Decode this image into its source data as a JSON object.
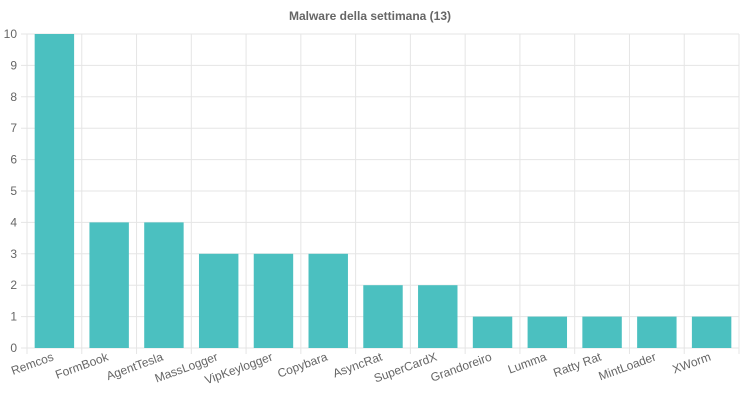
{
  "chart_data": {
    "type": "bar",
    "title": "Malware della settimana (13)",
    "categories": [
      "Remcos",
      "FormBook",
      "AgentTesla",
      "MassLogger",
      "VipKeylogger",
      "Copybara",
      "AsyncRat",
      "SuperCardX",
      "Grandoreiro",
      "Lumma",
      "Ratty Rat",
      "MintLoader",
      "XWorm"
    ],
    "values": [
      10,
      4,
      4,
      3,
      3,
      3,
      2,
      2,
      1,
      1,
      1,
      1,
      1
    ],
    "color": "#4bc0c0",
    "ylim": [
      0,
      10
    ],
    "yticks": [
      0,
      1,
      2,
      3,
      4,
      5,
      6,
      7,
      8,
      9,
      10
    ],
    "grid": true
  }
}
